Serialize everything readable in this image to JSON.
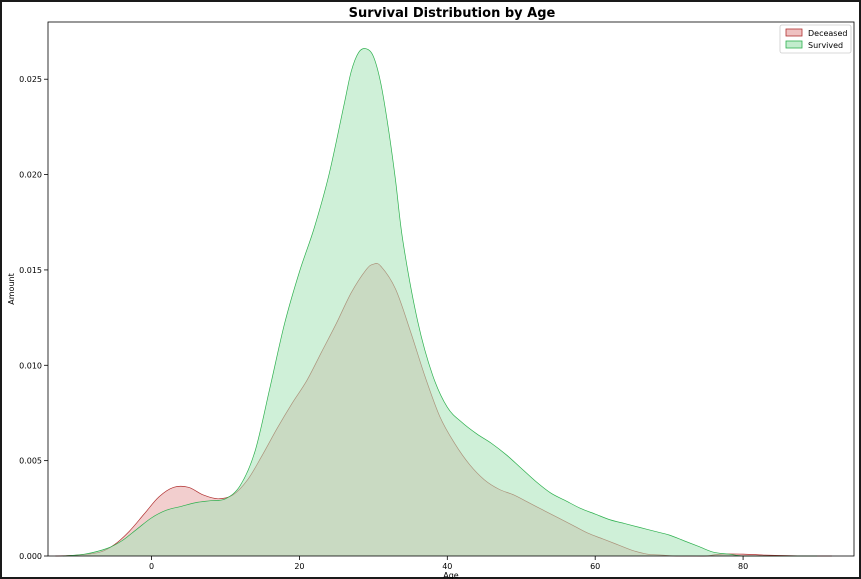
{
  "chart_data": {
    "type": "area",
    "title": "Survival Distribution by Age",
    "xlabel": "Age",
    "ylabel": "Amount",
    "xlim": [
      -14,
      95
    ],
    "ylim": [
      0,
      0.028
    ],
    "xticks": [
      0,
      20,
      40,
      60,
      80
    ],
    "yticks": [
      0.0,
      0.005,
      0.01,
      0.015,
      0.02,
      0.025
    ],
    "ytick_labels": [
      "0.000",
      "0.005",
      "0.010",
      "0.015",
      "0.020",
      "0.025"
    ],
    "grid": false,
    "legend_position": "top-right",
    "series": [
      {
        "name": "Deceased",
        "fill": "#e8a6a6",
        "stroke": "#b03030",
        "x": [
          -13,
          -10,
          -7,
          -5,
          -3,
          -1,
          1,
          3,
          5,
          7,
          9,
          11,
          13,
          15,
          17,
          19,
          21,
          23,
          25,
          27,
          29,
          30,
          31,
          33,
          35,
          37,
          39,
          41,
          43,
          45,
          47,
          49,
          51,
          53,
          55,
          57,
          59,
          61,
          63,
          65,
          67,
          69,
          71,
          73,
          75,
          77,
          80,
          83,
          86,
          89,
          92
        ],
        "y": [
          0.0,
          5e-05,
          0.0002,
          0.0006,
          0.0013,
          0.0022,
          0.0031,
          0.0036,
          0.0036,
          0.0032,
          0.003,
          0.0032,
          0.004,
          0.0053,
          0.0067,
          0.008,
          0.0092,
          0.0107,
          0.0122,
          0.0138,
          0.015,
          0.0153,
          0.0152,
          0.014,
          0.0118,
          0.0094,
          0.0073,
          0.0059,
          0.0048,
          0.004,
          0.0035,
          0.0032,
          0.0028,
          0.0024,
          0.002,
          0.0016,
          0.0012,
          0.0009,
          0.0006,
          0.0003,
          0.0001,
          5e-05,
          0.0,
          0.0,
          0.0,
          0.0001,
          0.0001,
          5e-05,
          2e-05,
          0.0,
          0.0
        ]
      },
      {
        "name": "Survived",
        "fill": "#a8e4b8",
        "stroke": "#2db04e",
        "x": [
          -12,
          -9,
          -6,
          -4,
          -2,
          0,
          2,
          4,
          6,
          8,
          10,
          12,
          14,
          16,
          18,
          20,
          22,
          24,
          26,
          27,
          28,
          29,
          30,
          31,
          32,
          33,
          34,
          36,
          38,
          40,
          42,
          44,
          46,
          48,
          50,
          52,
          54,
          56,
          58,
          60,
          62,
          64,
          66,
          68,
          70,
          72,
          74,
          76,
          78,
          80,
          82,
          86,
          90
        ],
        "y": [
          0.0,
          0.0001,
          0.0004,
          0.0008,
          0.0014,
          0.002,
          0.0024,
          0.0026,
          0.0028,
          0.0029,
          0.003,
          0.0037,
          0.0055,
          0.0088,
          0.0122,
          0.0149,
          0.0172,
          0.02,
          0.0236,
          0.0254,
          0.0264,
          0.0266,
          0.0262,
          0.0248,
          0.0225,
          0.0197,
          0.0165,
          0.0123,
          0.0095,
          0.0078,
          0.007,
          0.0064,
          0.0059,
          0.0053,
          0.0046,
          0.0039,
          0.0033,
          0.0029,
          0.0025,
          0.0022,
          0.0019,
          0.0017,
          0.0015,
          0.0013,
          0.0011,
          0.0008,
          0.0005,
          0.0002,
          0.0001,
          0.0,
          0.0,
          0.0,
          0.0
        ]
      }
    ]
  }
}
